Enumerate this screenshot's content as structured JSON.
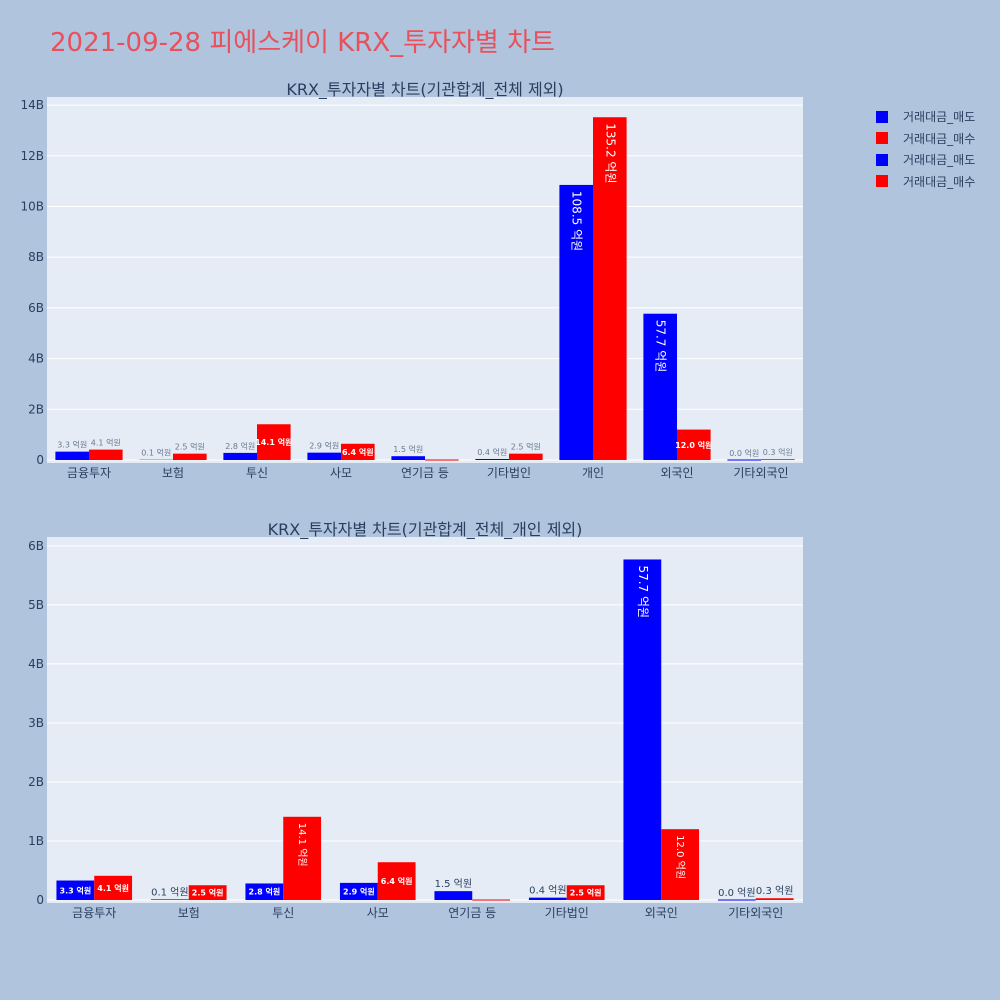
{
  "page": {
    "title": "2021-09-28 피에스케이 KRX_투자자별 차트"
  },
  "legend": {
    "items": [
      {
        "label": "거래대금_매도",
        "color": "#0000ff"
      },
      {
        "label": "거래대금_매수",
        "color": "#ff0000"
      },
      {
        "label": "거래대금_매도",
        "color": "#0000ff"
      },
      {
        "label": "거래대금_매수",
        "color": "#ff0000"
      }
    ]
  },
  "chart_data": [
    {
      "type": "bar",
      "title": "KRX_투자자별 차트(기관합계_전체 제외)",
      "categories": [
        "금융투자",
        "보험",
        "투신",
        "사모",
        "연기금 등",
        "기타법인",
        "개인",
        "외국인",
        "기타외국인"
      ],
      "series": [
        {
          "name": "거래대금_매도",
          "color": "#0000ff",
          "values": [
            330000000,
            10000000,
            280000000,
            290000000,
            150000000,
            40000000,
            10850000000,
            5770000000,
            0
          ],
          "labels": [
            "3.3 억원",
            "0.1 억원",
            "2.8 억원",
            "2.9 억원",
            "1.5 억원",
            "0.4 억원",
            "108.5 억원",
            "57.7 억원",
            "0.0 억원"
          ]
        },
        {
          "name": "거래대금_매수",
          "color": "#ff0000",
          "values": [
            410000000,
            250000000,
            1410000000,
            640000000,
            0,
            250000000,
            13520000000,
            1200000000,
            30000000
          ],
          "labels": [
            "4.1 억원",
            "2.5 억원",
            "14.1 억원",
            "6.4 억원",
            "",
            "2.5 억원",
            "135.2 억원",
            "12.0 억원",
            "0.3 억원"
          ]
        }
      ],
      "yticks": [
        0,
        2000000000,
        4000000000,
        6000000000,
        8000000000,
        10000000000,
        12000000000,
        14000000000
      ],
      "ytick_labels": [
        "0",
        "2B",
        "4B",
        "6B",
        "8B",
        "10B",
        "12B",
        "14B"
      ],
      "ylim": [
        0,
        14200000000
      ],
      "grid": true,
      "legend_position": "right"
    },
    {
      "type": "bar",
      "title": "KRX_투자자별 차트(기관합계_전체_개인 제외)",
      "categories": [
        "금융투자",
        "보험",
        "투신",
        "사모",
        "연기금 등",
        "기타법인",
        "외국인",
        "기타외국인"
      ],
      "series": [
        {
          "name": "거래대금_매도",
          "color": "#0000ff",
          "values": [
            330000000,
            10000000,
            280000000,
            290000000,
            150000000,
            40000000,
            5770000000,
            0
          ],
          "labels": [
            "3.3 억원",
            "0.1 억원",
            "2.8 억원",
            "2.9 억원",
            "1.5 억원",
            "0.4 억원",
            "57.7 억원",
            "0.0 억원"
          ]
        },
        {
          "name": "거래대금_매수",
          "color": "#ff0000",
          "values": [
            410000000,
            250000000,
            1410000000,
            640000000,
            0,
            250000000,
            1200000000,
            30000000
          ],
          "labels": [
            "4.1 억원",
            "2.5 억원",
            "14.1 억원",
            "6.4 억원",
            "",
            "2.5 억원",
            "12.0 억원",
            "0.3 억원"
          ]
        }
      ],
      "yticks": [
        0,
        1000000000,
        2000000000,
        3000000000,
        4000000000,
        5000000000,
        6000000000
      ],
      "ytick_labels": [
        "0",
        "1B",
        "2B",
        "3B",
        "4B",
        "5B",
        "6B"
      ],
      "ylim": [
        0,
        6100000000
      ],
      "grid": true,
      "legend_position": "right"
    }
  ]
}
